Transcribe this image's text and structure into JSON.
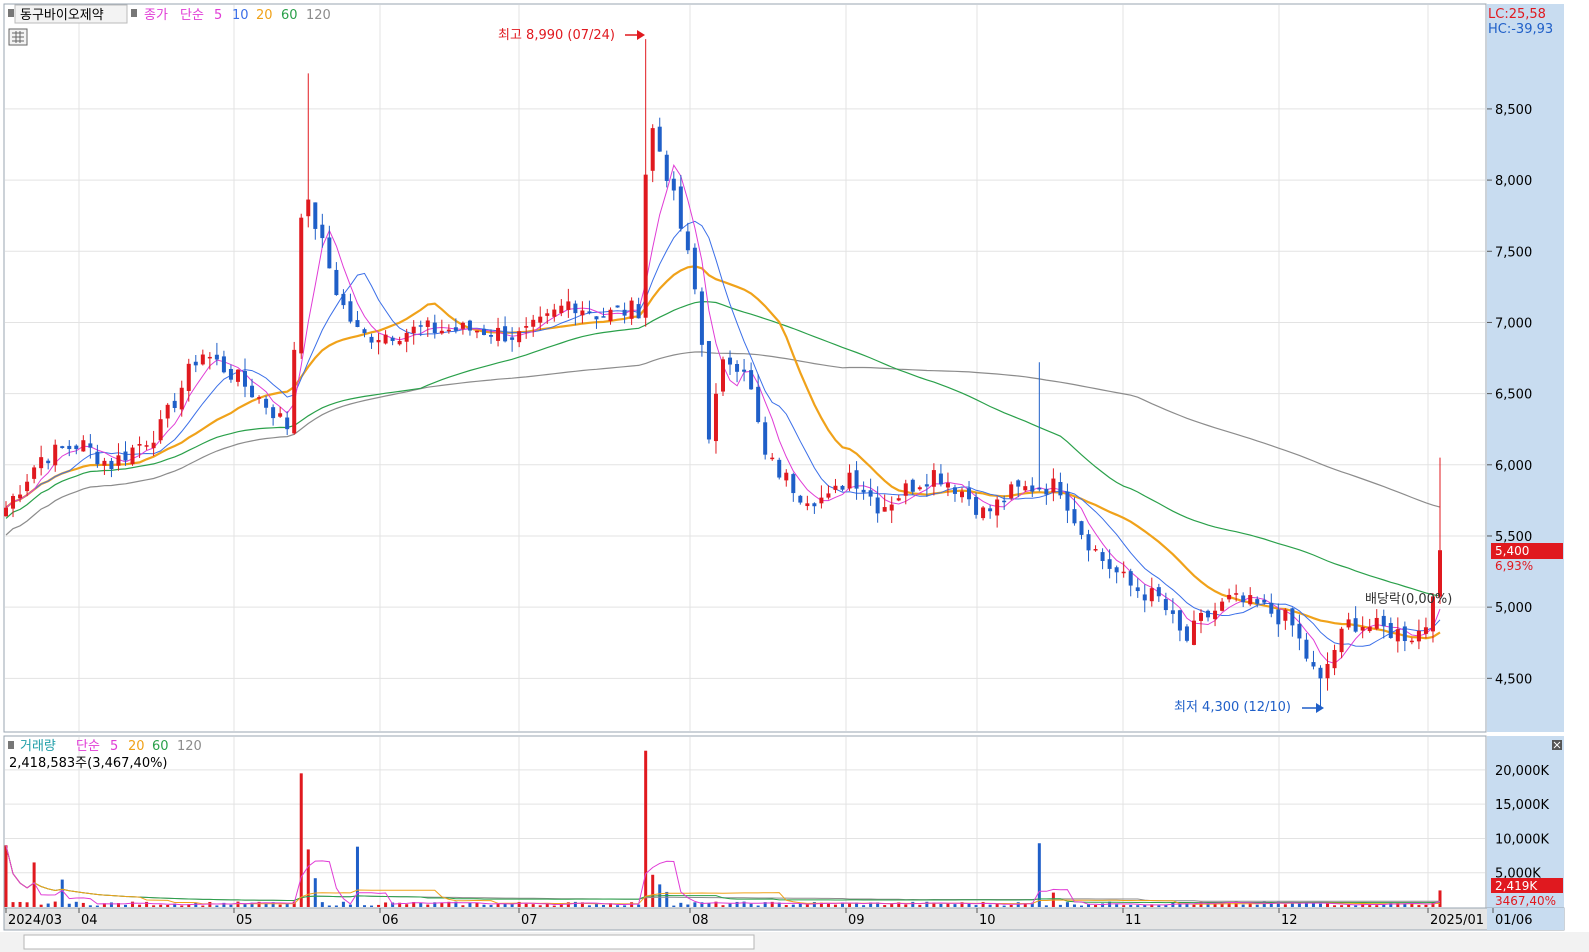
{
  "header": {
    "stock_name": "동구바이오제약",
    "price_legend": {
      "type_label": "종가",
      "avg_label": "단순",
      "periods": [
        "5",
        "10",
        "20",
        "60",
        "120"
      ]
    },
    "lc_label": "LC:25,58",
    "hc_label": "HC:-39,93"
  },
  "volume_panel": {
    "legend": {
      "title": "거래량",
      "avg_label": "단순",
      "periods": [
        "5",
        "20",
        "60",
        "120"
      ]
    },
    "current_text": "2,418,583주(3,467,40%)",
    "current_badge": "2,419K",
    "current_pct": "3467,40%"
  },
  "annotations": {
    "high_label": "최고 8,990 (07/24)",
    "low_label": "최저 4,300 (12/10)",
    "dividend_label": "배당락(0,00%)",
    "last_price": "5,400",
    "last_change": "6,93%"
  },
  "colors": {
    "up": "#e0191f",
    "down": "#1f5fc8",
    "ma5": "#e03cd6",
    "ma10": "#3b6fe8",
    "ma20": "#f0a21a",
    "ma60": "#2aa04a",
    "ma120": "#8c8c8c",
    "axis_bg": "#c8dcf0",
    "grid": "#e3e3e3"
  },
  "chart_data": [
    {
      "type": "candlestick",
      "y_ticks": [
        "4,500",
        "5,000",
        "5,500",
        "6,000",
        "6,500",
        "7,000",
        "7,500",
        "8,000",
        "8,500"
      ],
      "y_tick_values": [
        4500,
        5000,
        5500,
        6000,
        6500,
        7000,
        7500,
        8000,
        8500
      ],
      "ylim": [
        4130,
        9230
      ],
      "x_labels": [
        "2024/03",
        "04",
        "05",
        "06",
        "07",
        "08",
        "09",
        "10",
        "11",
        "12",
        "2025/01",
        "01/06"
      ],
      "key_points": [
        {
          "date": "2024/03 start",
          "close": 5700
        },
        {
          "date": "04 mid",
          "close": 6150
        },
        {
          "date": "05 mid",
          "close": 6250
        },
        {
          "date": "05/20",
          "close": 7900
        },
        {
          "date": "06 mid",
          "close": 6850
        },
        {
          "date": "07 mid",
          "close": 6950
        },
        {
          "date": "07/24",
          "high": 8990,
          "close": 8450
        },
        {
          "date": "08 start",
          "close": 7050
        },
        {
          "date": "08/05",
          "close": 6200
        },
        {
          "date": "08 end",
          "close": 5700
        },
        {
          "date": "09 mid",
          "close": 5850
        },
        {
          "date": "10 mid",
          "close": 5900
        },
        {
          "date": "11 mid",
          "close": 4800
        },
        {
          "date": "12/10",
          "low": 4300,
          "close": 4450
        },
        {
          "date": "2025/01/06",
          "high": 6050,
          "close": 5400
        }
      ],
      "ma_endpoints": {
        "ma60": 5180,
        "ma120": 5820,
        "ma20": 4850
      }
    },
    {
      "type": "bar",
      "title": "거래량",
      "y_ticks": [
        "5,000K",
        "10,000K",
        "15,000K",
        "20,000K"
      ],
      "y_tick_values": [
        5000,
        10000,
        15000,
        20000
      ],
      "unit": "K",
      "spikes": [
        {
          "date": "2024/03 start",
          "volume_k": 9000
        },
        {
          "date": "2024/03 mid",
          "volume_k": 6500
        },
        {
          "date": "05/20",
          "volume_k": 19500
        },
        {
          "date": "05/23",
          "volume_k": 8400
        },
        {
          "date": "06 start",
          "volume_k": 8800
        },
        {
          "date": "07/24",
          "volume_k": 22800
        },
        {
          "date": "10 mid",
          "volume_k": 9300
        },
        {
          "date": "2025/01/06",
          "volume_k": 2419
        }
      ]
    }
  ]
}
